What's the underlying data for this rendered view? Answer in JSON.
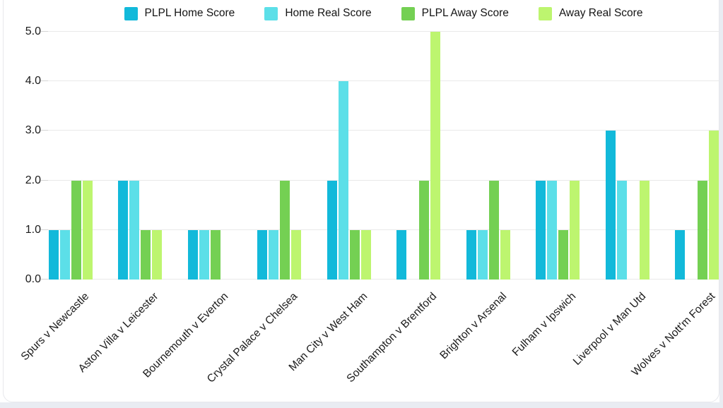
{
  "chart_data": {
    "type": "bar",
    "title": "",
    "xlabel": "",
    "ylabel": "",
    "categories": [
      "Spurs v Newcastle",
      "Aston Villa v Leicester",
      "Bournemouth v Everton",
      "Crystal Palace v Chelsea",
      "Man City v West Ham",
      "Southampton v Brentford",
      "Brighton v Arsenal",
      "Fulham v Ipswich",
      "Liverpool v Man Utd",
      "Wolves v Nott'm Forest"
    ],
    "series": [
      {
        "name": "PLPL Home Score",
        "color": "#12b9da",
        "values": [
          1,
          2,
          1,
          1,
          2,
          1,
          1,
          2,
          3,
          1
        ]
      },
      {
        "name": "Home Real Score",
        "color": "#5cdfe8",
        "values": [
          1,
          2,
          1,
          1,
          4,
          0,
          1,
          2,
          2,
          0
        ]
      },
      {
        "name": "PLPL Away Score",
        "color": "#74d053",
        "values": [
          2,
          1,
          1,
          2,
          1,
          2,
          2,
          1,
          0,
          2
        ]
      },
      {
        "name": "Away Real Score",
        "color": "#bdf56f",
        "values": [
          2,
          1,
          0,
          1,
          1,
          5,
          1,
          2,
          2,
          3
        ]
      }
    ],
    "ylim": [
      0,
      5
    ],
    "yticks": [
      "0.0",
      "1.0",
      "2.0",
      "3.0",
      "4.0",
      "5.0"
    ],
    "ytick_values": [
      0,
      1,
      2,
      3,
      4,
      5
    ],
    "grid": true,
    "legend_position": "top-center",
    "colors": {
      "grid_line": "#e9e9e9",
      "tick_line": "#d4d4d4",
      "axis_text": "#1a1a1a",
      "card_background": "#ffffff",
      "page_background": "#e9ecf2"
    }
  }
}
